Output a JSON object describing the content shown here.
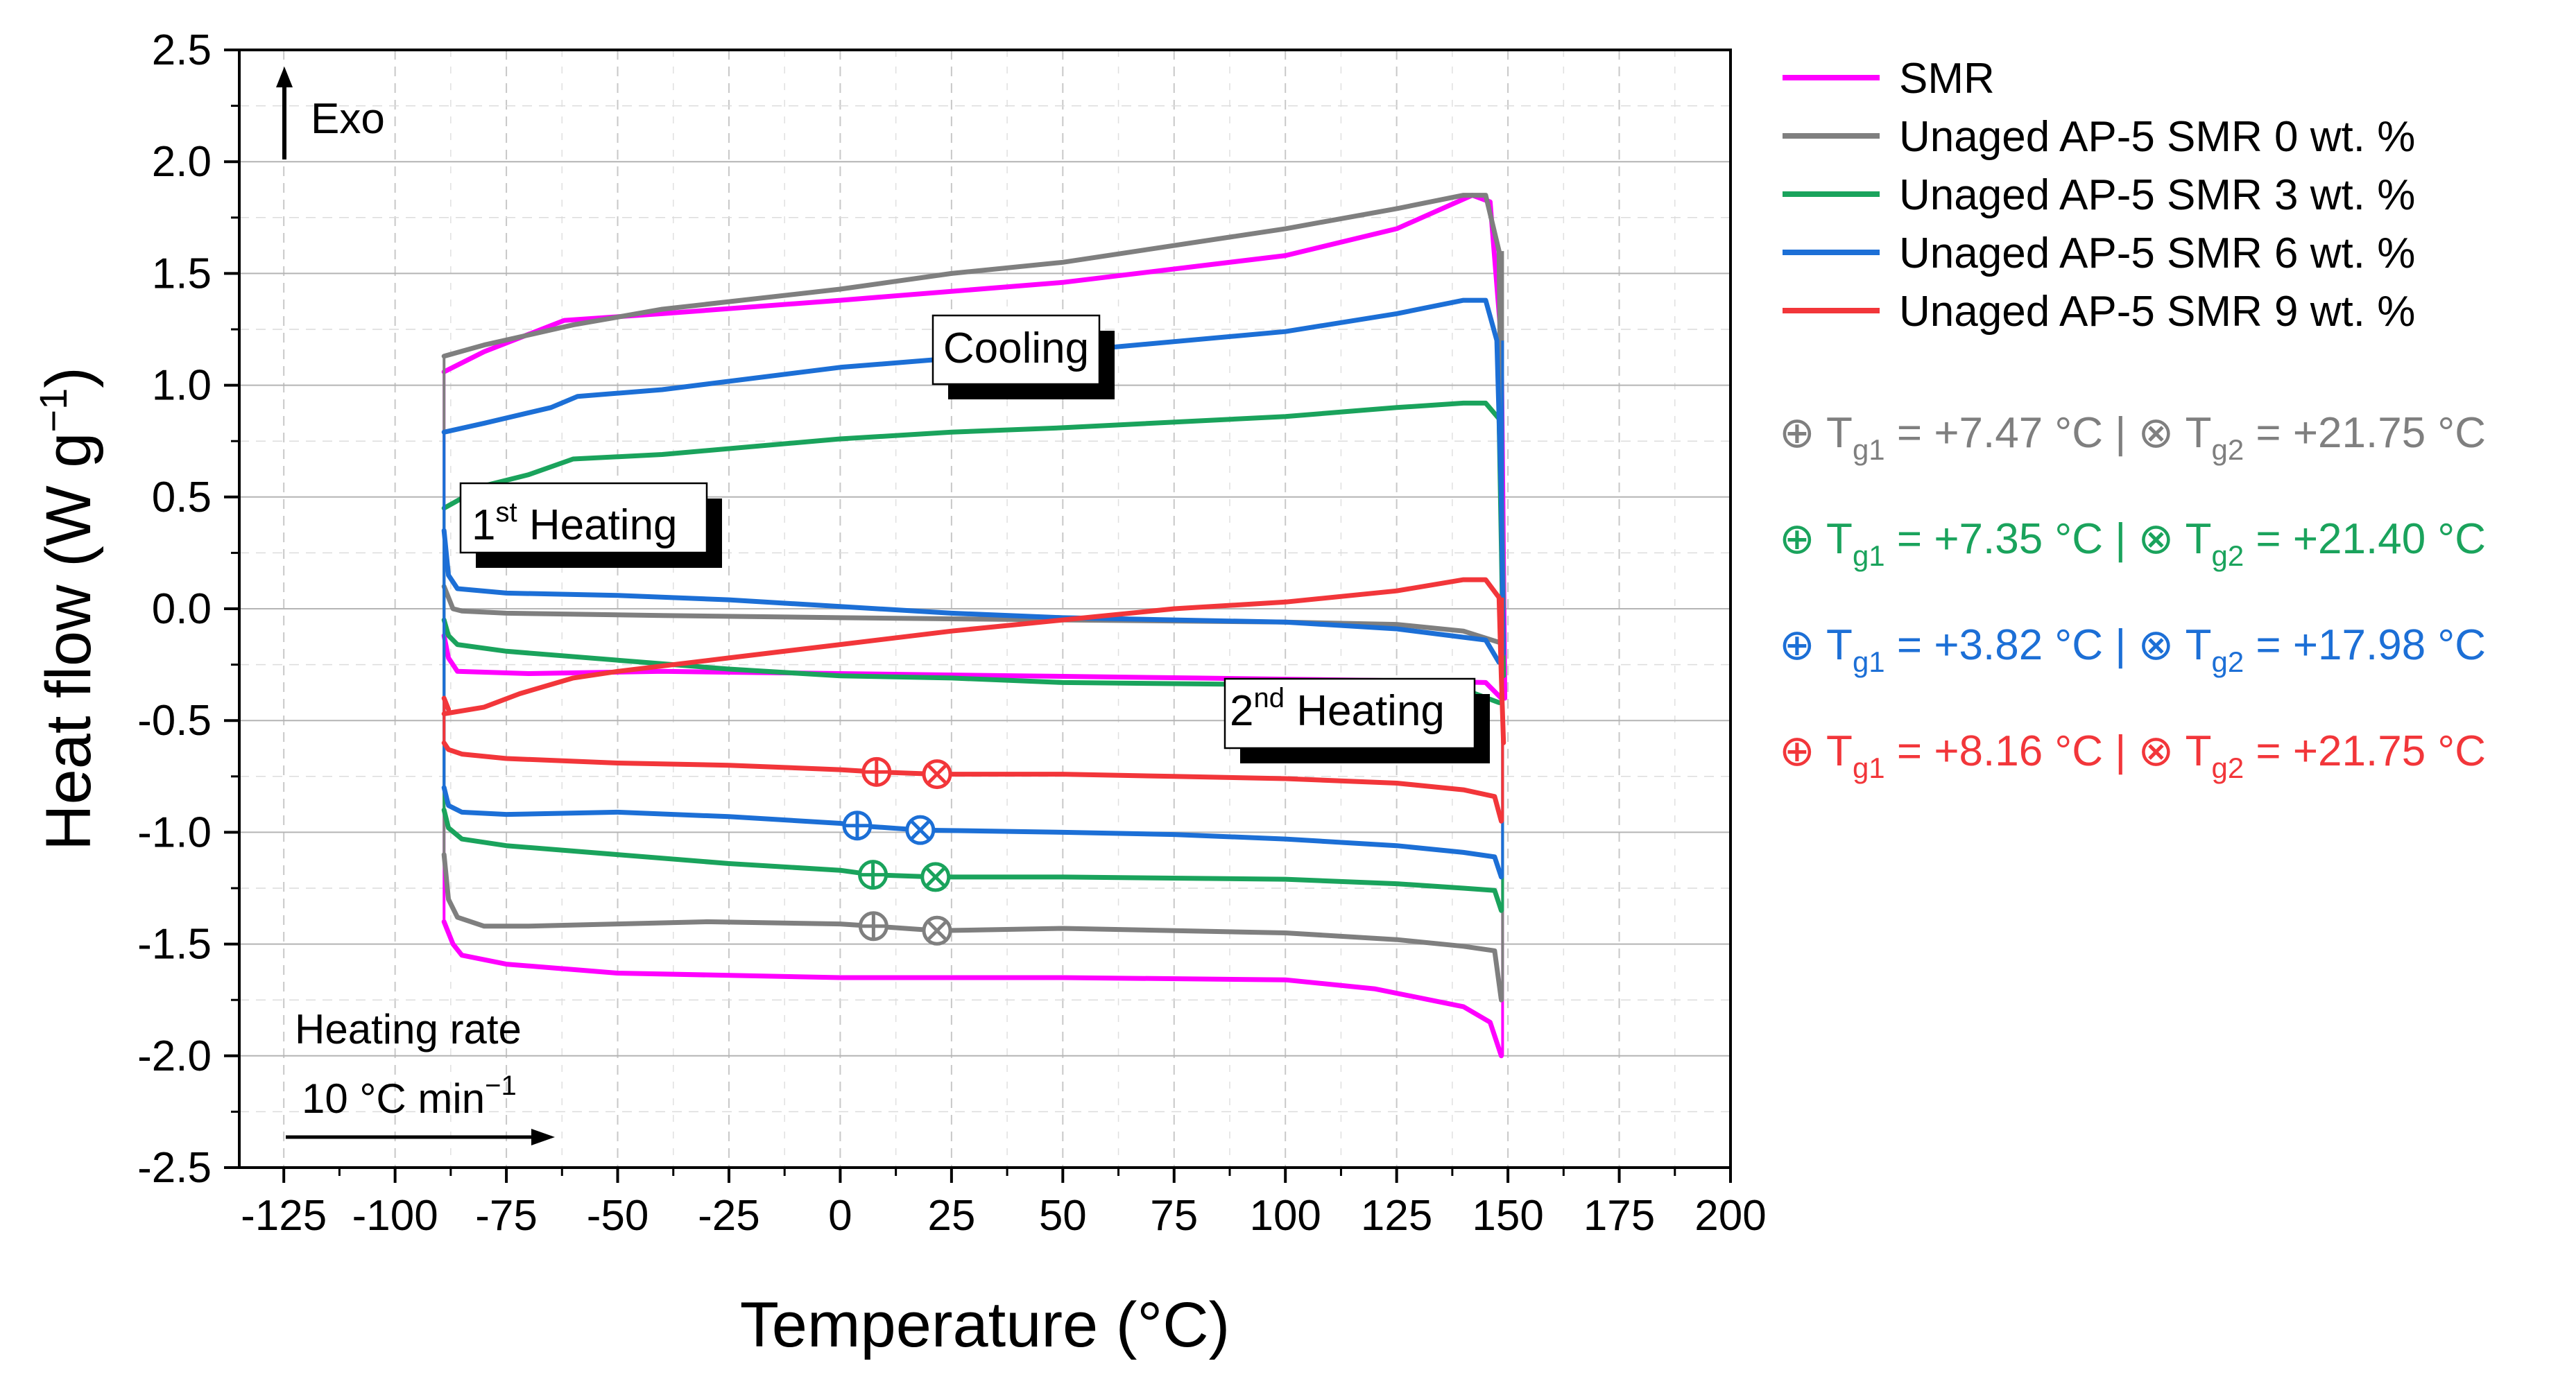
{
  "chart_data": {
    "type": "line",
    "title": "",
    "xlabel": "Temperature (°C)",
    "ylabel": "Heat flow (W g−1)",
    "ylabel_main": "Heat flow (W g",
    "ylabel_sup": "−1",
    "ylabel_close": ")",
    "xlim": [
      -135,
      200
    ],
    "ylim": [
      -2.5,
      2.5
    ],
    "grid": true,
    "legend_position": "right",
    "x_ticks": [
      -125,
      -100,
      -75,
      -50,
      -25,
      0,
      25,
      50,
      75,
      100,
      125,
      150,
      175,
      200
    ],
    "x_tick_labels": [
      "-125",
      "-100",
      "-75",
      "-50",
      "-25",
      "0",
      "25",
      "50",
      "75",
      "100",
      "125",
      "150",
      "175",
      "200"
    ],
    "y_ticks": [
      2.5,
      2.0,
      1.5,
      1.0,
      0.5,
      0.0,
      -0.5,
      -1.0,
      -1.5,
      -2.0,
      -2.5
    ],
    "y_tick_labels": [
      "2.5",
      "2.0",
      "1.5",
      "1.0",
      "0.5",
      "0.0",
      "-0.5",
      "-1.0",
      "-1.5",
      "-2.0",
      "-2.5"
    ],
    "series": [
      {
        "name": "SMR",
        "color": "#ff00ff",
        "cooling": [
          [
            -89,
            1.06
          ],
          [
            -80,
            1.15
          ],
          [
            -62,
            1.29
          ],
          [
            -40,
            1.32
          ],
          [
            0,
            1.38
          ],
          [
            50,
            1.46
          ],
          [
            100,
            1.58
          ],
          [
            125,
            1.7
          ],
          [
            142,
            1.85
          ],
          [
            146,
            1.82
          ],
          [
            148.5,
            1.2
          ],
          [
            149,
            0.2
          ],
          [
            149.3,
            -0.4
          ]
        ],
        "heating1": [
          [
            -89,
            -0.12
          ],
          [
            -88,
            -0.22
          ],
          [
            -86,
            -0.28
          ],
          [
            -70,
            -0.29
          ],
          [
            -40,
            -0.28
          ],
          [
            0,
            -0.29
          ],
          [
            40,
            -0.3
          ],
          [
            80,
            -0.31
          ],
          [
            120,
            -0.32
          ],
          [
            145,
            -0.33
          ],
          [
            148.5,
            -0.4
          ]
        ],
        "heating2": [
          [
            -89,
            -1.4
          ],
          [
            -87,
            -1.5
          ],
          [
            -85,
            -1.55
          ],
          [
            -75,
            -1.59
          ],
          [
            -50,
            -1.63
          ],
          [
            0,
            -1.65
          ],
          [
            50,
            -1.65
          ],
          [
            100,
            -1.66
          ],
          [
            120,
            -1.7
          ],
          [
            140,
            -1.78
          ],
          [
            146,
            -1.85
          ],
          [
            148.5,
            -2.0
          ]
        ]
      },
      {
        "name": "Unaged AP-5 SMR 0 wt. %",
        "color": "#7f7f7f",
        "cooling": [
          [
            -89,
            1.13
          ],
          [
            -80,
            1.18
          ],
          [
            -60,
            1.27
          ],
          [
            -40,
            1.34
          ],
          [
            0,
            1.43
          ],
          [
            25,
            1.5
          ],
          [
            50,
            1.55
          ],
          [
            100,
            1.7
          ],
          [
            125,
            1.79
          ],
          [
            140,
            1.85
          ],
          [
            145,
            1.85
          ],
          [
            148,
            1.6
          ],
          [
            148.5,
            0.6
          ],
          [
            149,
            0.0
          ]
        ],
        "heating1": [
          [
            -89,
            0.1
          ],
          [
            -87,
            0.0
          ],
          [
            -85,
            -0.01
          ],
          [
            -75,
            -0.02
          ],
          [
            -40,
            -0.03
          ],
          [
            0,
            -0.04
          ],
          [
            50,
            -0.05
          ],
          [
            100,
            -0.06
          ],
          [
            125,
            -0.07
          ],
          [
            140,
            -0.1
          ],
          [
            148,
            -0.15
          ]
        ],
        "heating2": [
          [
            -89,
            -1.1
          ],
          [
            -88,
            -1.3
          ],
          [
            -86,
            -1.38
          ],
          [
            -80,
            -1.42
          ],
          [
            -70,
            -1.42
          ],
          [
            -50,
            -1.41
          ],
          [
            -30,
            -1.4
          ],
          [
            0,
            -1.41
          ],
          [
            7.47,
            -1.42
          ],
          [
            21.75,
            -1.44
          ],
          [
            50,
            -1.43
          ],
          [
            100,
            -1.45
          ],
          [
            125,
            -1.48
          ],
          [
            140,
            -1.51
          ],
          [
            147,
            -1.53
          ],
          [
            148.5,
            -1.75
          ]
        ]
      },
      {
        "name": "Unaged AP-5 SMR 3 wt. %",
        "color": "#1aa35c",
        "cooling": [
          [
            -89,
            0.45
          ],
          [
            -80,
            0.55
          ],
          [
            -70,
            0.6
          ],
          [
            -60,
            0.67
          ],
          [
            -40,
            0.69
          ],
          [
            0,
            0.76
          ],
          [
            25,
            0.79
          ],
          [
            50,
            0.81
          ],
          [
            100,
            0.86
          ],
          [
            125,
            0.9
          ],
          [
            140,
            0.92
          ],
          [
            145,
            0.92
          ],
          [
            148,
            0.85
          ],
          [
            148.5,
            0.3
          ],
          [
            149,
            -0.3
          ]
        ],
        "heating1": [
          [
            -89,
            -0.05
          ],
          [
            -88,
            -0.12
          ],
          [
            -86,
            -0.16
          ],
          [
            -75,
            -0.19
          ],
          [
            -50,
            -0.23
          ],
          [
            -25,
            -0.27
          ],
          [
            0,
            -0.3
          ],
          [
            25,
            -0.31
          ],
          [
            50,
            -0.33
          ],
          [
            100,
            -0.34
          ],
          [
            140,
            -0.36
          ],
          [
            148,
            -0.42
          ]
        ],
        "heating2": [
          [
            -89,
            -0.9
          ],
          [
            -88,
            -0.98
          ],
          [
            -85,
            -1.03
          ],
          [
            -75,
            -1.06
          ],
          [
            -50,
            -1.1
          ],
          [
            -25,
            -1.14
          ],
          [
            0,
            -1.17
          ],
          [
            7.35,
            -1.19
          ],
          [
            21.4,
            -1.2
          ],
          [
            50,
            -1.2
          ],
          [
            100,
            -1.21
          ],
          [
            125,
            -1.23
          ],
          [
            140,
            -1.25
          ],
          [
            147,
            -1.26
          ],
          [
            148.5,
            -1.35
          ]
        ]
      },
      {
        "name": "Unaged AP-5 SMR 6 wt. %",
        "color": "#1c6fd6",
        "cooling": [
          [
            -89,
            0.79
          ],
          [
            -80,
            0.83
          ],
          [
            -65,
            0.9
          ],
          [
            -59,
            0.95
          ],
          [
            -40,
            0.98
          ],
          [
            0,
            1.08
          ],
          [
            25,
            1.12
          ],
          [
            50,
            1.15
          ],
          [
            100,
            1.24
          ],
          [
            125,
            1.32
          ],
          [
            140,
            1.38
          ],
          [
            145,
            1.38
          ],
          [
            147.5,
            1.2
          ],
          [
            148.5,
            0.5
          ],
          [
            149,
            -0.2
          ]
        ],
        "heating1": [
          [
            -89,
            0.35
          ],
          [
            -88,
            0.15
          ],
          [
            -86,
            0.09
          ],
          [
            -75,
            0.07
          ],
          [
            -50,
            0.06
          ],
          [
            -25,
            0.04
          ],
          [
            0,
            0.01
          ],
          [
            25,
            -0.02
          ],
          [
            50,
            -0.04
          ],
          [
            75,
            -0.05
          ],
          [
            100,
            -0.06
          ],
          [
            125,
            -0.09
          ],
          [
            145,
            -0.14
          ],
          [
            148,
            -0.24
          ]
        ],
        "heating2": [
          [
            -89,
            -0.8
          ],
          [
            -88,
            -0.88
          ],
          [
            -85,
            -0.91
          ],
          [
            -75,
            -0.92
          ],
          [
            -50,
            -0.91
          ],
          [
            -25,
            -0.93
          ],
          [
            0,
            -0.96
          ],
          [
            3.82,
            -0.97
          ],
          [
            17.98,
            -0.99
          ],
          [
            50,
            -1.0
          ],
          [
            75,
            -1.01
          ],
          [
            100,
            -1.03
          ],
          [
            125,
            -1.06
          ],
          [
            140,
            -1.09
          ],
          [
            147,
            -1.11
          ],
          [
            148.5,
            -1.2
          ]
        ]
      },
      {
        "name": "Unaged AP-5 SMR 9 wt. %",
        "color": "#f2363a",
        "cooling": [
          [
            -89,
            -0.47
          ],
          [
            -80,
            -0.44
          ],
          [
            -72,
            -0.38
          ],
          [
            -60,
            -0.31
          ],
          [
            -50,
            -0.28
          ],
          [
            -25,
            -0.22
          ],
          [
            0,
            -0.16
          ],
          [
            25,
            -0.1
          ],
          [
            50,
            -0.05
          ],
          [
            75,
            0.0
          ],
          [
            100,
            0.03
          ],
          [
            125,
            0.08
          ],
          [
            140,
            0.13
          ],
          [
            145,
            0.13
          ],
          [
            148,
            0.05
          ],
          [
            148.5,
            -0.3
          ],
          [
            149,
            -0.6
          ]
        ],
        "heating1": [
          [
            -89,
            -0.4
          ],
          [
            -88,
            -0.45
          ]
        ],
        "heating2": [
          [
            -89,
            -0.6
          ],
          [
            -88,
            -0.63
          ],
          [
            -85,
            -0.65
          ],
          [
            -75,
            -0.67
          ],
          [
            -50,
            -0.69
          ],
          [
            -25,
            -0.7
          ],
          [
            0,
            -0.72
          ],
          [
            8.16,
            -0.73
          ],
          [
            21.75,
            -0.74
          ],
          [
            50,
            -0.74
          ],
          [
            75,
            -0.75
          ],
          [
            100,
            -0.76
          ],
          [
            125,
            -0.78
          ],
          [
            140,
            -0.81
          ],
          [
            147,
            -0.84
          ],
          [
            148.5,
            -0.95
          ]
        ]
      }
    ],
    "tg_markers": [
      {
        "color": "#7f7f7f",
        "tg1": 7.47,
        "tg2": 21.75,
        "y1": -1.42,
        "y2": -1.44,
        "label": "⊕ Tg1 = +7.47 °C | ⊗ Tg2 = +21.75 °C"
      },
      {
        "color": "#1aa35c",
        "tg1": 7.35,
        "tg2": 21.4,
        "y1": -1.19,
        "y2": -1.2,
        "label": "⊕ Tg1 = +7.35 °C | ⊗ Tg2 = +21.40 °C"
      },
      {
        "color": "#1c6fd6",
        "tg1": 3.82,
        "tg2": 17.98,
        "y1": -0.97,
        "y2": -0.99,
        "label": "⊕ Tg1 = +3.82 °C | ⊗ Tg2 = +17.98 °C"
      },
      {
        "color": "#f2363a",
        "tg1": 8.16,
        "tg2": 21.75,
        "y1": -0.73,
        "y2": -0.74,
        "label": "⊕ Tg1 = +8.16 °C | ⊗ Tg2 = +21.75 °C"
      }
    ],
    "annotations": {
      "exo": "Exo",
      "cooling": "Cooling",
      "heating1_main": "1",
      "heating1_sup": "st",
      "heating1_rest": " Heating",
      "heating2_main": "2",
      "heating2_sup": "nd",
      "heating2_rest": " Heating",
      "rate_line1": "Heating rate",
      "rate_line2": "10 °C min",
      "rate_sup": "−1"
    },
    "tg_parts": {
      "oplus": "⊕",
      "otimes": "⊗",
      "T": "T",
      "sub1": "g1",
      "sub2": "g2",
      "sep": " | "
    }
  }
}
